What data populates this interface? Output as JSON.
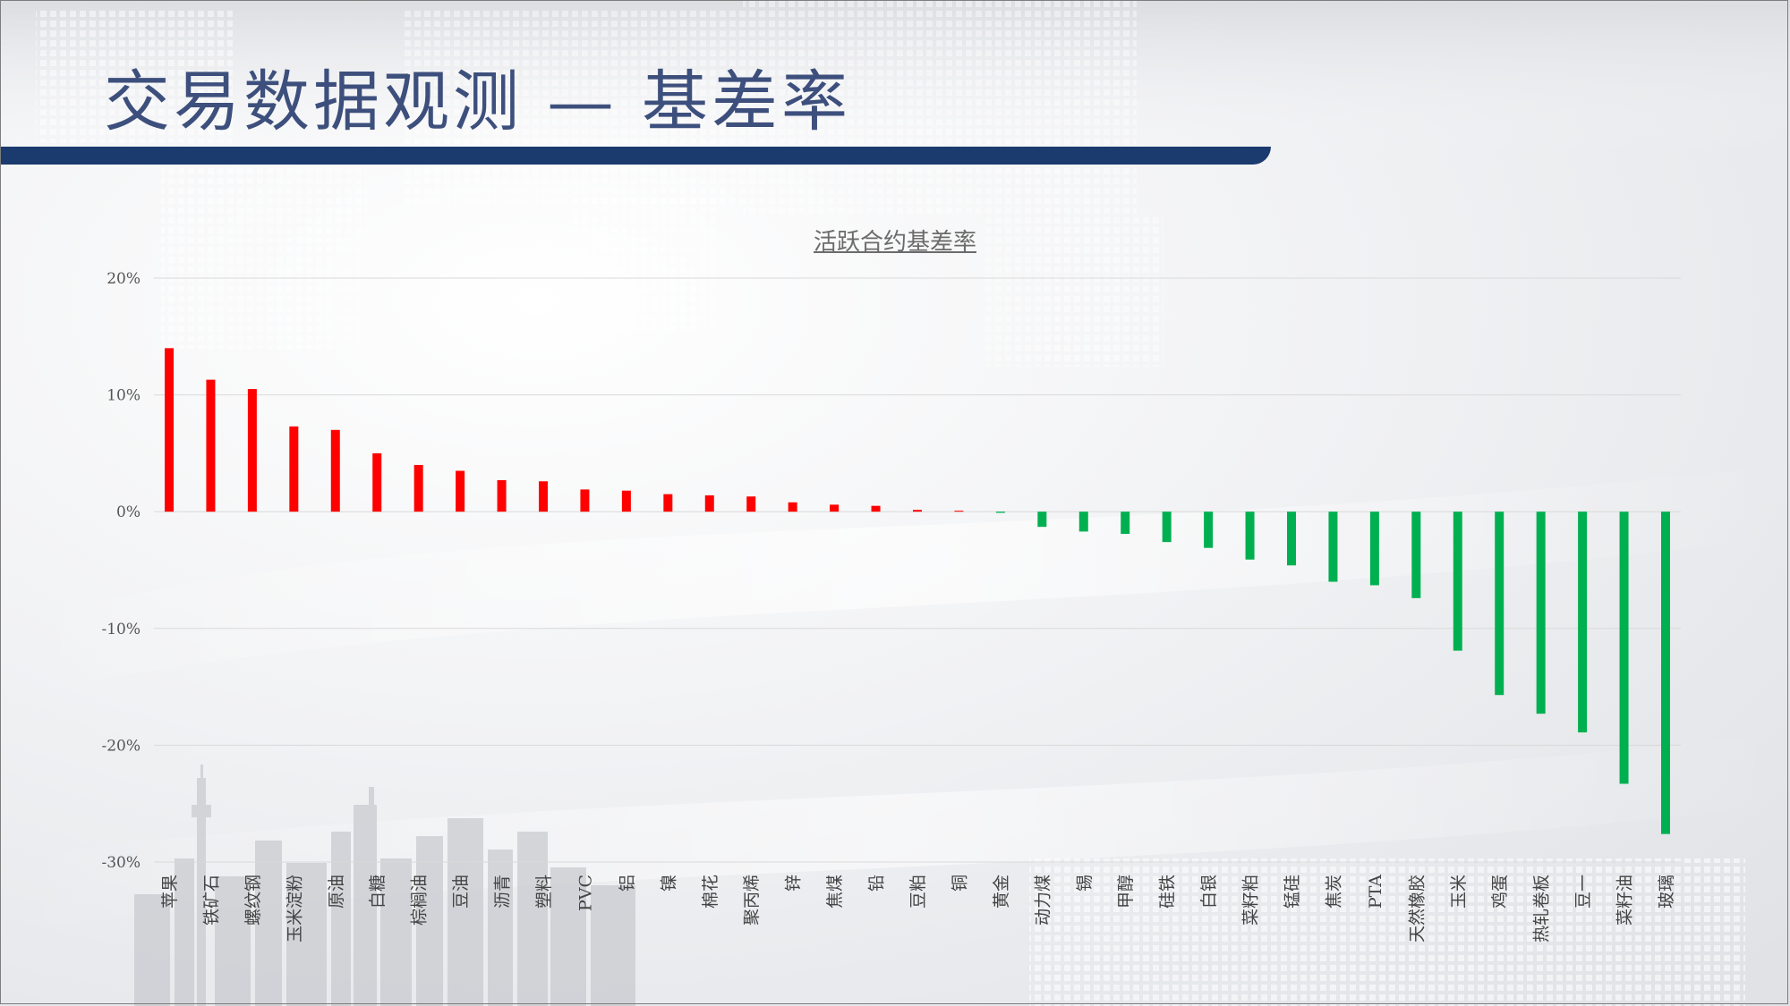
{
  "slide": {
    "title": "交易数据观测 — 基差率"
  },
  "colors": {
    "positive": "#ff0000",
    "negative": "#00b050",
    "title_bar": "#1b3a6e",
    "title_text": "#3d4f7c",
    "grid": "#d9d9d9"
  },
  "chart_data": {
    "type": "bar",
    "title": "活跃合约基差率",
    "xlabel": "",
    "ylabel": "",
    "ylim": [
      -0.3,
      0.2
    ],
    "yticks": [
      0.2,
      0.1,
      0,
      -0.1,
      -0.2,
      -0.3
    ],
    "ytick_labels": [
      "20%",
      "10%",
      "0%",
      "-10%",
      "-20%",
      "-30%"
    ],
    "grid": true,
    "legend": "none",
    "categories": [
      "苹果",
      "铁矿石",
      "螺纹钢",
      "玉米淀粉",
      "原油",
      "白糖",
      "棕榈油",
      "豆油",
      "沥青",
      "塑料",
      "PVC",
      "铝",
      "镍",
      "棉花",
      "聚丙烯",
      "锌",
      "焦煤",
      "铅",
      "豆粕",
      "铜",
      "黄金",
      "动力煤",
      "锡",
      "甲醇",
      "硅铁",
      "白银",
      "菜籽粕",
      "锰硅",
      "焦炭",
      "PTA",
      "天然橡胶",
      "玉米",
      "鸡蛋",
      "热轧卷板",
      "豆一",
      "菜籽油",
      "玻璃"
    ],
    "values": [
      0.14,
      0.113,
      0.105,
      0.073,
      0.07,
      0.05,
      0.04,
      0.035,
      0.027,
      0.026,
      0.019,
      0.018,
      0.015,
      0.014,
      0.013,
      0.008,
      0.006,
      0.005,
      0.0015,
      0.0008,
      -0.001,
      -0.013,
      -0.017,
      -0.019,
      -0.026,
      -0.031,
      -0.041,
      -0.046,
      -0.06,
      -0.063,
      -0.074,
      -0.119,
      -0.157,
      -0.173,
      -0.189,
      -0.233,
      -0.276
    ]
  }
}
